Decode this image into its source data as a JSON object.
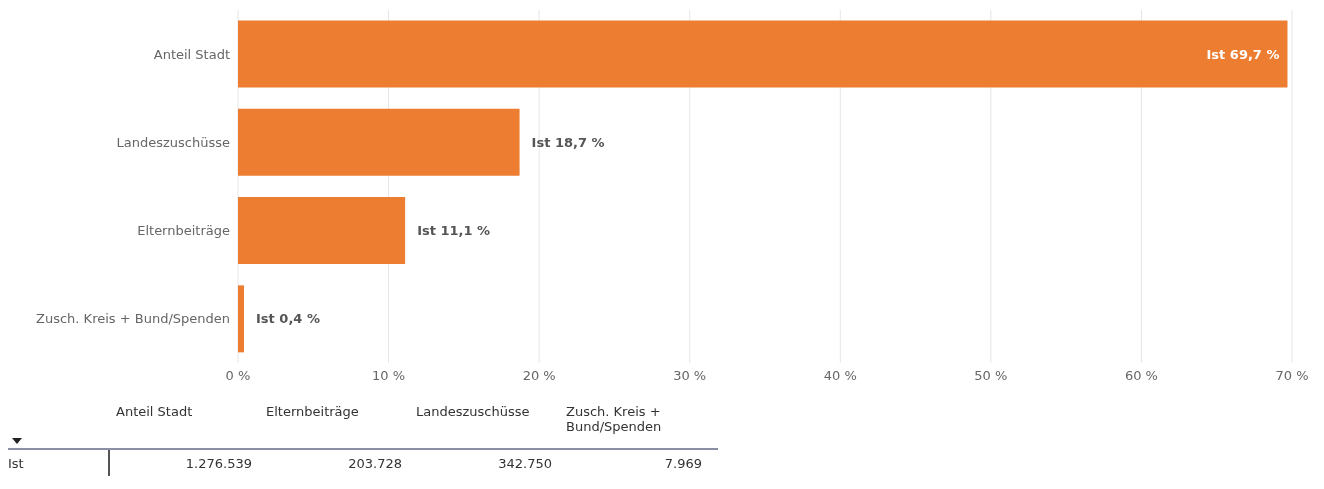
{
  "chart_data": {
    "type": "bar",
    "orientation": "horizontal",
    "categories": [
      "Anteil Stadt",
      "Landeszuschüsse",
      "Elternbeiträge",
      "Zusch. Kreis + Bund/Spenden"
    ],
    "values": [
      69.7,
      18.7,
      11.1,
      0.4
    ],
    "color": "#ed7d31",
    "value_labels": [
      "Ist 69,7 %",
      "Ist 18,7 %",
      "Ist 11,1 %",
      "Ist 0,4 %"
    ],
    "xlim": [
      0,
      70
    ],
    "xticks": [
      {
        "value": 0,
        "label": "0 %"
      },
      {
        "value": 10,
        "label": "10 %"
      },
      {
        "value": 20,
        "label": "20 %"
      },
      {
        "value": 30,
        "label": "30 %"
      },
      {
        "value": 40,
        "label": "40 %"
      },
      {
        "value": 50,
        "label": "50 %"
      },
      {
        "value": 60,
        "label": "60 %"
      },
      {
        "value": 70,
        "label": "70 %"
      }
    ],
    "grid": "x",
    "annotations": [
      "Anteil Stadt",
      "Elternbeiträge",
      "Landeszuschüsse",
      "Zusch. Kreis + Bund/Spenden",
      "Ist",
      "1.276.539",
      "203.728",
      "342.750",
      "7.969"
    ]
  }
}
